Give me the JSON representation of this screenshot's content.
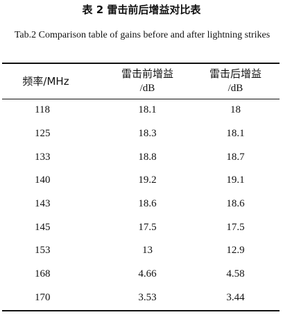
{
  "caption_cn": "表 2 雷击前后增益对比表",
  "caption_en": "Tab.2 Comparison table of gains before and after lightning strikes",
  "headers": {
    "freq": "频率/MHz",
    "before_line1": "雷击前增益",
    "before_line2": "/dB",
    "after_line1": "雷击后增益",
    "after_line2": "/dB"
  },
  "rows": [
    {
      "freq": "118",
      "before": "18.1",
      "after": "18"
    },
    {
      "freq": "125",
      "before": "18.3",
      "after": "18.1"
    },
    {
      "freq": "133",
      "before": "18.8",
      "after": "18.7"
    },
    {
      "freq": "140",
      "before": "19.2",
      "after": "19.1"
    },
    {
      "freq": "143",
      "before": "18.6",
      "after": "18.6"
    },
    {
      "freq": "145",
      "before": "17.5",
      "after": "17.5"
    },
    {
      "freq": "153",
      "before": "13",
      "after": "12.9"
    },
    {
      "freq": "168",
      "before": "4.66",
      "after": "4.58"
    },
    {
      "freq": "170",
      "before": "3.53",
      "after": "3.44"
    }
  ]
}
